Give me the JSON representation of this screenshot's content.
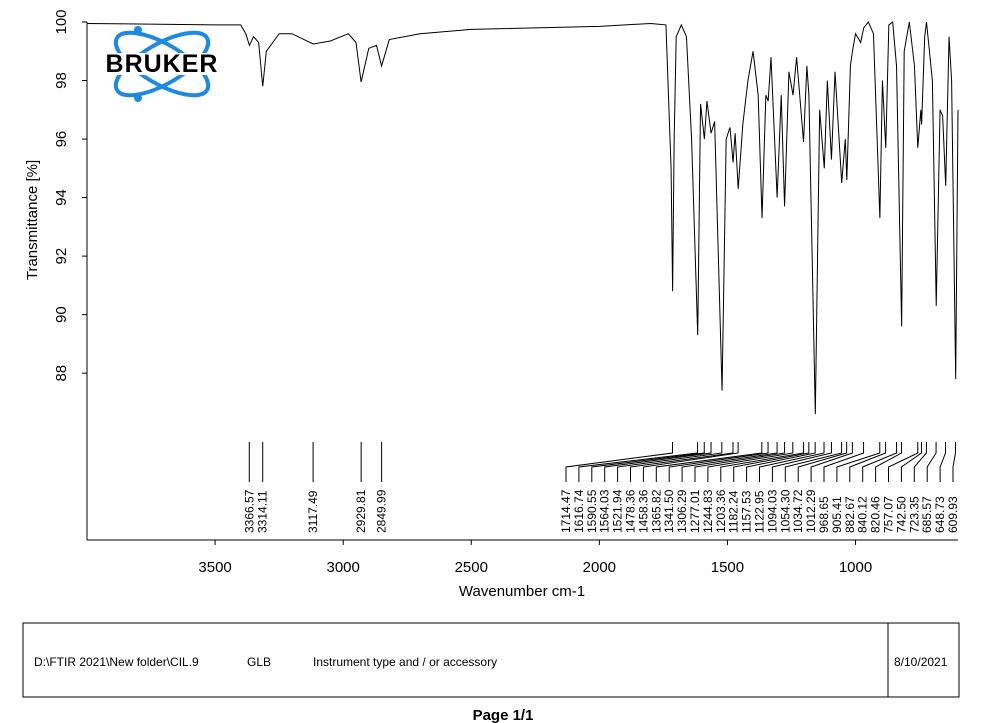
{
  "chart_data": {
    "type": "line",
    "logo": "BRUKER",
    "xlabel": "Wavenumber cm-1",
    "ylabel": "Transmittance [%]",
    "xlim": [
      4000,
      600
    ],
    "ylim": [
      82.3,
      100
    ],
    "xticks": [
      3500,
      3000,
      2500,
      2000,
      1500,
      1000
    ],
    "yticks": [
      88,
      90,
      92,
      94,
      96,
      98,
      100
    ],
    "color": "#000000",
    "x": [
      4000,
      3500,
      3400,
      3380,
      3366,
      3350,
      3330,
      3314,
      3300,
      3250,
      3200,
      3117,
      3050,
      2980,
      2950,
      2930,
      2900,
      2870,
      2850,
      2820,
      2700,
      2500,
      2000,
      1800,
      1740,
      1720,
      1714,
      1708,
      1700,
      1680,
      1660,
      1640,
      1616,
      1605,
      1590,
      1580,
      1564,
      1550,
      1521,
      1505,
      1490,
      1478,
      1470,
      1458,
      1440,
      1420,
      1400,
      1380,
      1365,
      1350,
      1341,
      1330,
      1306,
      1290,
      1277,
      1260,
      1244,
      1230,
      1203,
      1190,
      1182,
      1157,
      1140,
      1122,
      1110,
      1094,
      1080,
      1054,
      1040,
      1034,
      1020,
      1012,
      1000,
      980,
      968,
      950,
      930,
      905,
      895,
      882,
      870,
      855,
      840,
      820,
      810,
      790,
      770,
      757,
      745,
      742,
      730,
      723,
      700,
      685,
      670,
      660,
      648,
      635,
      625,
      609,
      600
    ],
    "y": [
      99.95,
      99.9,
      99.9,
      99.6,
      99.2,
      99.5,
      99.3,
      97.8,
      99.0,
      99.6,
      99.6,
      99.25,
      99.35,
      99.6,
      99.3,
      97.95,
      99.1,
      99.2,
      98.5,
      99.4,
      99.6,
      99.75,
      99.85,
      99.95,
      99.9,
      95,
      90.8,
      96,
      99.5,
      99.9,
      99.5,
      96,
      89.3,
      97.2,
      96.0,
      97.3,
      96.2,
      96.6,
      87.4,
      96.0,
      96.4,
      95.2,
      96.2,
      94.3,
      96.5,
      98.0,
      99.0,
      97.5,
      93.3,
      97.5,
      97.3,
      98.8,
      94.0,
      97.5,
      93.7,
      98.3,
      97.5,
      98.8,
      95.9,
      98.5,
      97.5,
      86.6,
      97.0,
      95.0,
      98.0,
      95.3,
      98.3,
      94.5,
      96.0,
      94.6,
      98.5,
      99.0,
      99.6,
      99.3,
      99.8,
      100,
      99.6,
      93.3,
      98,
      95.7,
      99.9,
      100,
      98.5,
      89.6,
      99,
      100,
      98.5,
      95.7,
      97,
      96.5,
      99.5,
      100,
      98,
      90.3,
      97,
      96.8,
      94.4,
      99.5,
      98,
      87.8,
      97
    ],
    "peaks": [
      3366.57,
      3314.11,
      3117.49,
      2929.81,
      2849.99,
      1714.47,
      1616.74,
      1590.55,
      1564.03,
      1521.94,
      1478.36,
      1458.36,
      1365.82,
      {
        "value": 1341.5,
        "label": "1341.50"
      },
      1306.29,
      1277.01,
      1244.83,
      1203.36,
      1182.24,
      1157.53,
      1122.95,
      1094.03,
      {
        "value": 1054.3,
        "label": "1054.30"
      },
      1034.72,
      1012.29,
      968.65,
      905.41,
      882.67,
      840.12,
      820.46,
      757.07,
      {
        "value": 742.5,
        "label": "742.50"
      },
      723.35,
      685.57,
      648.73,
      609.93
    ]
  },
  "footer": {
    "file": "D:\\FTIR 2021\\New folder\\CIL.9",
    "operator": "GLB",
    "instrument": "Instrument type and / or accessory",
    "date": "8/10/2021"
  },
  "page": "Page 1/1"
}
